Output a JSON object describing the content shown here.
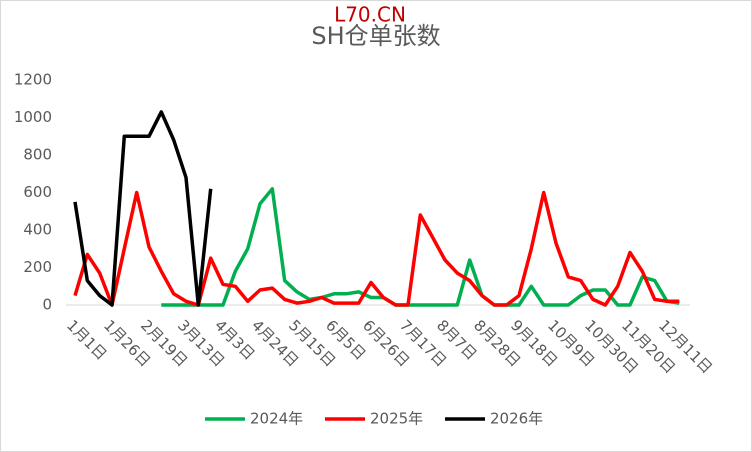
{
  "chart_data": {
    "type": "line",
    "title": "L70.CN",
    "subtitle": "SH仓单张数",
    "categories": [
      "1月1日",
      null,
      null,
      "1月26日",
      null,
      null,
      "2月19日",
      null,
      null,
      "3月13日",
      null,
      null,
      "4月3日",
      null,
      null,
      "4月24日",
      null,
      null,
      "5月15日",
      null,
      null,
      "6月5日",
      null,
      null,
      "6月26日",
      null,
      null,
      "7月17日",
      null,
      null,
      "8月7日",
      null,
      null,
      "8月28日",
      null,
      null,
      "9月18日",
      null,
      null,
      "10月9日",
      null,
      null,
      "10月30日",
      null,
      null,
      "11月20日",
      null,
      null,
      "12月11日",
      null
    ],
    "series": [
      {
        "name": "2024年",
        "color": "#00b050",
        "values": [
          null,
          null,
          null,
          null,
          null,
          null,
          null,
          0,
          0,
          0,
          0,
          0,
          0,
          180,
          300,
          540,
          620,
          130,
          70,
          30,
          40,
          60,
          60,
          70,
          40,
          40,
          0,
          0,
          0,
          0,
          0,
          0,
          240,
          50,
          0,
          0,
          0,
          100,
          0,
          0,
          0,
          50,
          80,
          80,
          0,
          0,
          150,
          130,
          20,
          10
        ]
      },
      {
        "name": "2025年",
        "color": "#ff0000",
        "values": [
          50,
          270,
          170,
          0,
          300,
          600,
          310,
          180,
          60,
          20,
          0,
          250,
          110,
          100,
          20,
          80,
          90,
          30,
          10,
          20,
          40,
          10,
          10,
          10,
          120,
          40,
          0,
          0,
          480,
          360,
          240,
          170,
          130,
          50,
          0,
          0,
          50,
          300,
          600,
          330,
          150,
          130,
          30,
          0,
          100,
          280,
          180,
          30,
          20,
          20
        ]
      },
      {
        "name": "2026年",
        "color": "#000000",
        "values": [
          550,
          130,
          50,
          0,
          900,
          900,
          900,
          1030,
          880,
          680,
          0,
          620,
          null,
          null,
          null,
          null,
          null,
          null,
          null,
          null,
          null,
          null,
          null,
          null,
          null,
          null,
          null,
          null,
          null,
          null,
          null,
          null,
          null,
          null,
          null,
          null,
          null,
          null,
          null,
          null,
          null,
          null,
          null,
          null,
          null,
          null,
          null,
          null,
          null,
          null
        ]
      }
    ],
    "ylim": [
      0,
      1200
    ],
    "yticks": [
      0,
      200,
      400,
      600,
      800,
      1000,
      1200
    ],
    "grid": false,
    "legend": "bottom"
  }
}
